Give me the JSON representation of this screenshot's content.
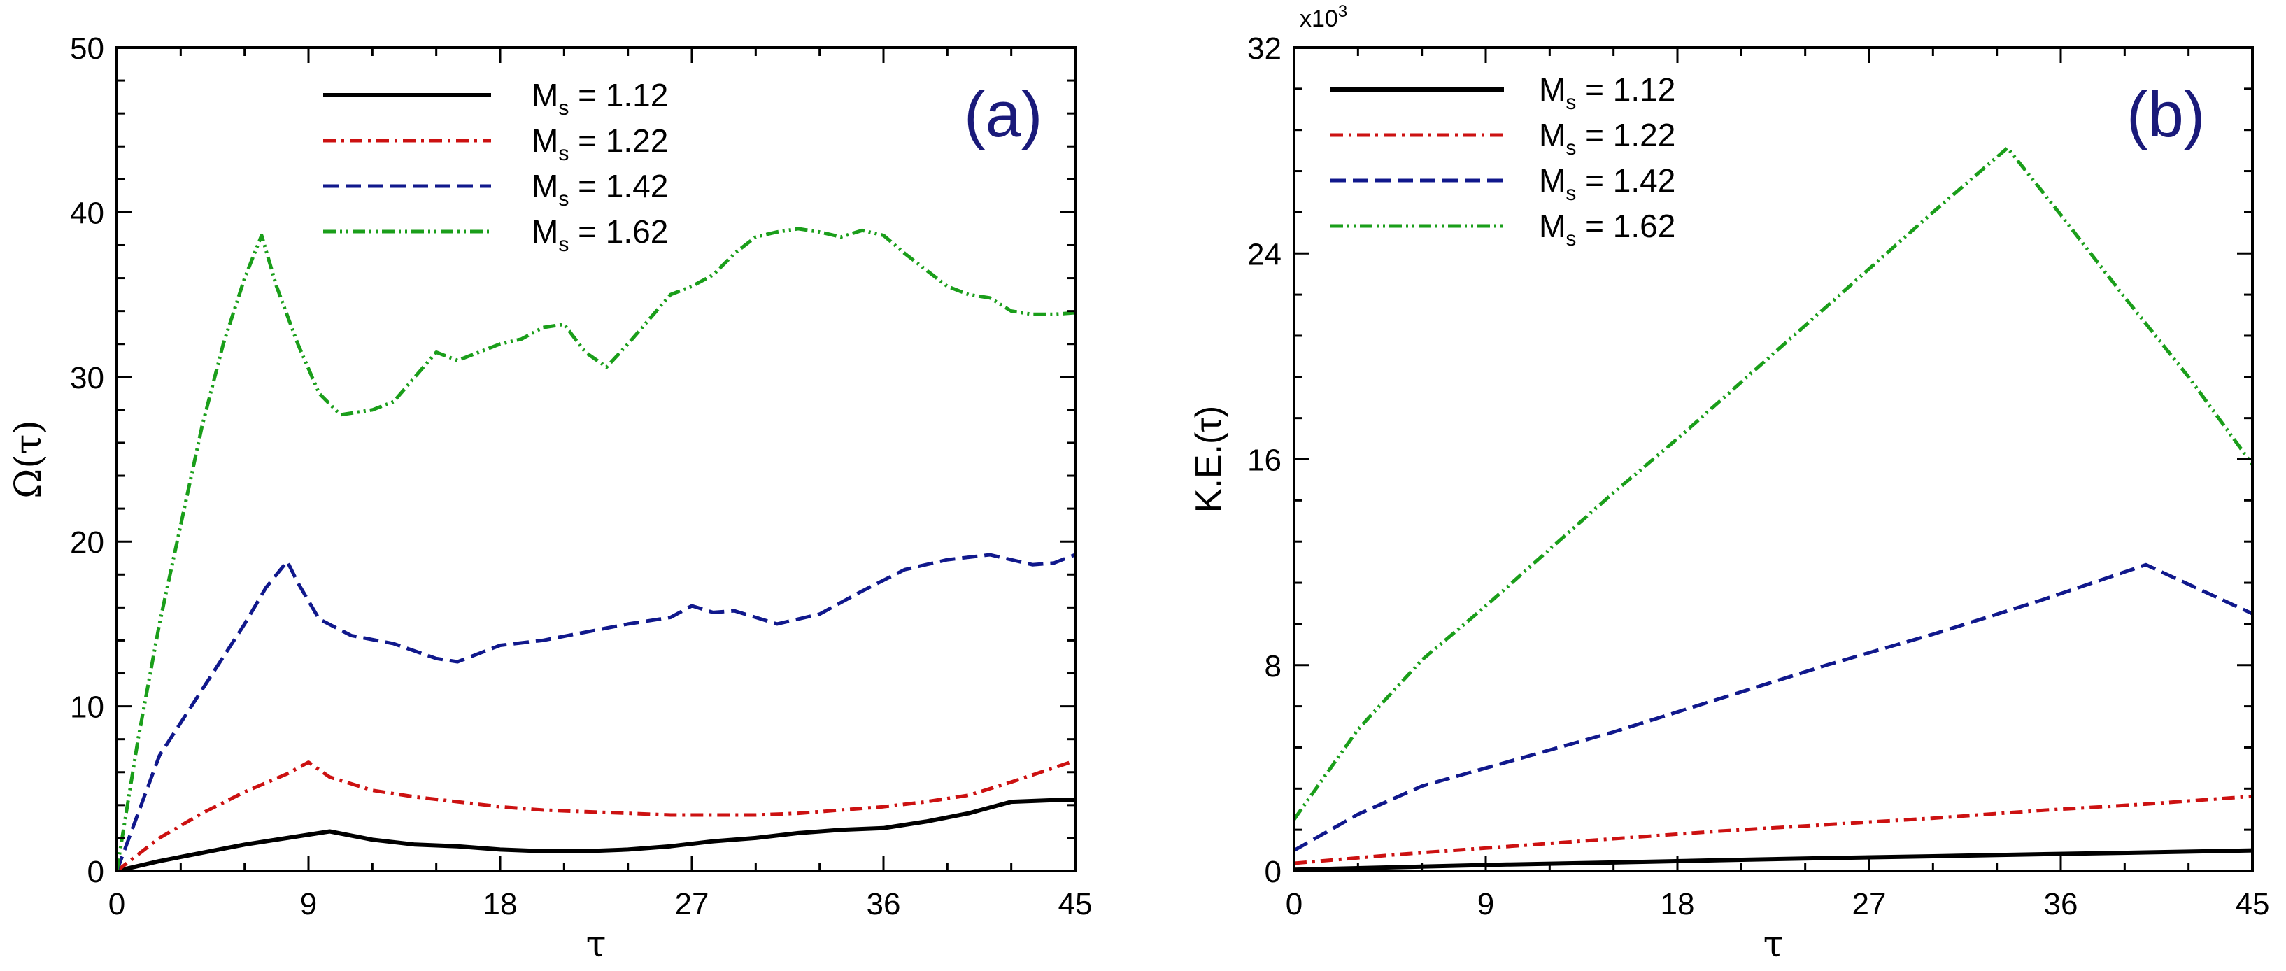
{
  "chart_data": [
    {
      "type": "line",
      "panel_label": "(a)",
      "xlabel": "τ",
      "ylabel": "Ω(τ)",
      "xlim": [
        0,
        45
      ],
      "ylim": [
        0,
        50
      ],
      "xticks": [
        0,
        9,
        18,
        27,
        36,
        45
      ],
      "yticks": [
        0,
        10,
        20,
        30,
        40,
        50
      ],
      "exponent": null,
      "legend_position": "top-right",
      "series": [
        {
          "name": "Ms = 1.12",
          "mach": "1.12",
          "color": "#000000",
          "dash": "",
          "width": 6,
          "x": [
            0,
            2,
            4,
            6,
            8,
            10,
            12,
            14,
            16,
            18,
            20,
            22,
            24,
            26,
            28,
            30,
            32,
            34,
            36,
            38,
            40,
            42,
            44,
            45
          ],
          "y": [
            0,
            0.6,
            1.1,
            1.6,
            2.0,
            2.4,
            1.9,
            1.6,
            1.5,
            1.3,
            1.2,
            1.2,
            1.3,
            1.5,
            1.8,
            2.0,
            2.3,
            2.5,
            2.6,
            3.0,
            3.5,
            4.2,
            4.3,
            4.3
          ]
        },
        {
          "name": "Ms = 1.22",
          "mach": "1.22",
          "color": "#cc1111",
          "dash": "18,8,4,8",
          "width": 5,
          "x": [
            0,
            2,
            4,
            6,
            8,
            9,
            10,
            12,
            14,
            16,
            18,
            20,
            22,
            24,
            26,
            28,
            30,
            32,
            34,
            36,
            38,
            40,
            42,
            45
          ],
          "y": [
            0,
            2.0,
            3.5,
            4.8,
            5.9,
            6.6,
            5.7,
            4.9,
            4.5,
            4.2,
            3.9,
            3.7,
            3.6,
            3.5,
            3.4,
            3.4,
            3.4,
            3.5,
            3.7,
            3.9,
            4.2,
            4.6,
            5.4,
            6.7
          ]
        },
        {
          "name": "Ms = 1.42",
          "mach": "1.42",
          "color": "#10188c",
          "dash": "22,10",
          "width": 5,
          "x": [
            0,
            2,
            4,
            6,
            7,
            8,
            8.5,
            9.5,
            11,
            13,
            15,
            16,
            18,
            20,
            22,
            24,
            26,
            27,
            28,
            29,
            31,
            33,
            35,
            37,
            39,
            41,
            43,
            44,
            45
          ],
          "y": [
            0,
            7.0,
            11.0,
            15.0,
            17.2,
            18.8,
            17.5,
            15.3,
            14.3,
            13.8,
            12.9,
            12.7,
            13.7,
            14.0,
            14.5,
            15.0,
            15.4,
            16.1,
            15.7,
            15.8,
            15.0,
            15.6,
            17.0,
            18.3,
            18.9,
            19.2,
            18.6,
            18.7,
            19.2
          ]
        },
        {
          "name": "Ms = 1.62",
          "mach": "1.62",
          "color": "#1a9e1a",
          "dash": "18,6,3,6,3,6",
          "width": 5,
          "x": [
            0,
            1,
            2,
            3,
            4,
            5,
            6,
            6.8,
            7.5,
            8.5,
            9.5,
            10.5,
            12,
            13,
            14,
            15,
            16,
            17,
            18,
            19,
            20,
            21,
            22,
            23,
            24,
            25,
            26,
            27,
            28,
            29,
            30,
            31,
            32,
            33,
            34,
            35,
            36,
            37,
            38,
            39,
            40,
            41,
            42,
            43,
            44,
            45
          ],
          "y": [
            0,
            8,
            15,
            21,
            27,
            32,
            36,
            38.6,
            35.5,
            32,
            29,
            27.7,
            28.0,
            28.5,
            30.0,
            31.5,
            31.0,
            31.5,
            32.0,
            32.3,
            33.0,
            33.2,
            31.5,
            30.6,
            32.0,
            33.5,
            35.0,
            35.5,
            36.2,
            37.5,
            38.5,
            38.8,
            39.0,
            38.8,
            38.5,
            38.9,
            38.6,
            37.5,
            36.5,
            35.5,
            35.0,
            34.8,
            34.0,
            33.8,
            33.8,
            33.9
          ]
        }
      ]
    },
    {
      "type": "line",
      "panel_label": "(b)",
      "xlabel": "τ",
      "ylabel": "K.E.(τ)",
      "xlim": [
        0,
        45
      ],
      "ylim": [
        0,
        32
      ],
      "xticks": [
        0,
        9,
        18,
        27,
        36,
        45
      ],
      "yticks": [
        0,
        8,
        16,
        24,
        32
      ],
      "exponent": {
        "base": "x10",
        "power": "3"
      },
      "legend_position": "top-left",
      "series": [
        {
          "name": "Ms = 1.12",
          "mach": "1.12",
          "color": "#000000",
          "dash": "",
          "width": 6,
          "x": [
            0,
            5,
            10,
            15,
            20,
            25,
            30,
            35,
            40,
            45
          ],
          "y": [
            0.05,
            0.15,
            0.25,
            0.33,
            0.42,
            0.5,
            0.57,
            0.65,
            0.72,
            0.8
          ]
        },
        {
          "name": "Ms = 1.22",
          "mach": "1.22",
          "color": "#cc1111",
          "dash": "18,8,4,8",
          "width": 5,
          "x": [
            0,
            5,
            10,
            15,
            20,
            25,
            30,
            35,
            40,
            45
          ],
          "y": [
            0.3,
            0.65,
            0.95,
            1.25,
            1.55,
            1.8,
            2.05,
            2.35,
            2.6,
            2.9
          ]
        },
        {
          "name": "Ms = 1.42",
          "mach": "1.42",
          "color": "#10188c",
          "dash": "22,10",
          "width": 5,
          "x": [
            0,
            3,
            6,
            9,
            15,
            20,
            25,
            30,
            35,
            40,
            45
          ],
          "y": [
            0.8,
            2.2,
            3.3,
            4.0,
            5.4,
            6.7,
            8.0,
            9.2,
            10.5,
            11.9,
            10.0
          ]
        },
        {
          "name": "Ms = 1.62",
          "mach": "1.62",
          "color": "#1a9e1a",
          "dash": "18,6,3,6,3,6",
          "width": 5,
          "x": [
            0,
            3,
            6,
            9,
            12,
            15,
            18,
            21,
            24,
            27,
            30,
            33.5,
            36,
            39,
            42,
            45
          ],
          "y": [
            2.0,
            5.5,
            8.2,
            10.3,
            12.5,
            14.7,
            16.8,
            19.0,
            21.2,
            23.4,
            25.6,
            28.1,
            25.5,
            22.3,
            19.2,
            15.8
          ]
        }
      ]
    }
  ]
}
